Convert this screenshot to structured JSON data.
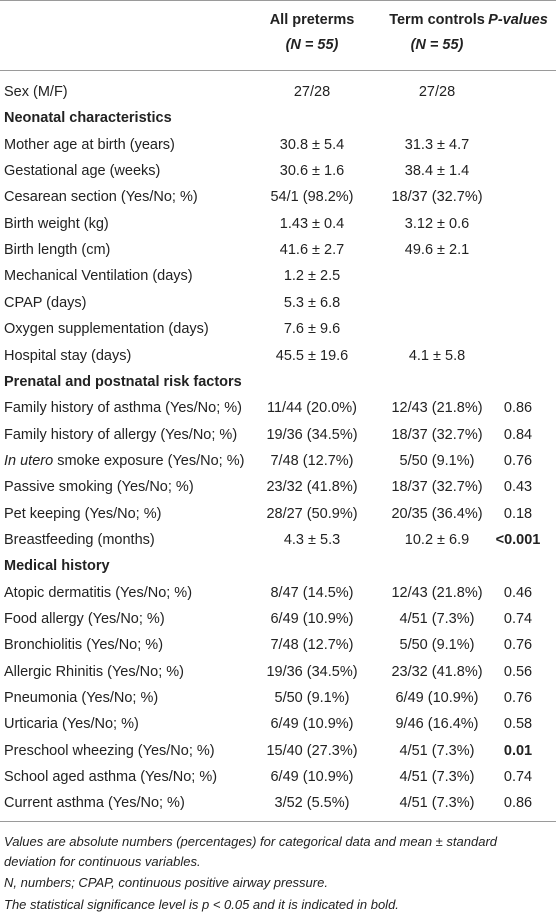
{
  "table": {
    "columns": [
      {
        "title": "All preterms",
        "subtitle": "(N = 55)"
      },
      {
        "title": "Term controls",
        "subtitle": "(N = 55)"
      },
      {
        "title": "P-values"
      }
    ],
    "rows": [
      {
        "label": "Sex (M/F)",
        "cells": [
          "27/28",
          "27/28",
          null
        ]
      },
      {
        "section": "Neonatal characteristics"
      },
      {
        "label": "Mother age at birth (years)",
        "cells": [
          "30.8 ± 5.4",
          "31.3 ± 4.7",
          null
        ]
      },
      {
        "label": "Gestational age (weeks)",
        "cells": [
          "30.6 ± 1.6",
          "38.4 ± 1.4",
          null
        ]
      },
      {
        "label": "Cesarean section (Yes/No; %)",
        "cells": [
          "54/1 (98.2%)",
          "18/37 (32.7%)",
          null
        ]
      },
      {
        "label": "Birth weight (kg)",
        "cells": [
          "1.43 ± 0.4",
          "3.12 ± 0.6",
          null
        ]
      },
      {
        "label": "Birth length (cm)",
        "cells": [
          "41.6 ± 2.7",
          "49.6 ± 2.1",
          null
        ]
      },
      {
        "label": "Mechanical Ventilation (days)",
        "cells": [
          "1.2 ± 2.5",
          null,
          null
        ]
      },
      {
        "label": "CPAP (days)",
        "cells": [
          "5.3 ± 6.8",
          null,
          null
        ]
      },
      {
        "label": "Oxygen supplementation (days)",
        "cells": [
          "7.6 ± 9.6",
          null,
          null
        ]
      },
      {
        "label": "Hospital stay (days)",
        "cells": [
          "45.5 ± 19.6",
          "4.1 ± 5.8",
          null
        ]
      },
      {
        "section": "Prenatal and postnatal risk factors"
      },
      {
        "label": "Family history of asthma (Yes/No; %)",
        "cells": [
          "11/44 (20.0%)",
          "12/43 (21.8%)",
          "0.86"
        ]
      },
      {
        "label": "Family history of allergy (Yes/No; %)",
        "cells": [
          "19/36 (34.5%)",
          "18/37 (32.7%)",
          "0.84"
        ]
      },
      {
        "label_italic": "In utero",
        "label": "smoke exposure (Yes/No; %)",
        "cells": [
          "7/48 (12.7%)",
          "5/50 (9.1%)",
          "0.76"
        ]
      },
      {
        "label": "Passive smoking (Yes/No; %)",
        "cells": [
          "23/32 (41.8%)",
          "18/37 (32.7%)",
          "0.43"
        ]
      },
      {
        "label": "Pet keeping (Yes/No; %)",
        "cells": [
          "28/27 (50.9%)",
          "20/35 (36.4%)",
          "0.18"
        ]
      },
      {
        "label": "Breastfeeding (months)",
        "cells": [
          "4.3 ± 5.3",
          "10.2 ± 6.9",
          "<0.001"
        ],
        "bold_p": true
      },
      {
        "section": "Medical history"
      },
      {
        "label": "Atopic dermatitis (Yes/No; %)",
        "cells": [
          "8/47 (14.5%)",
          "12/43 (21.8%)",
          "0.46"
        ]
      },
      {
        "label": "Food allergy (Yes/No; %)",
        "cells": [
          "6/49 (10.9%)",
          "4/51 (7.3%)",
          "0.74"
        ]
      },
      {
        "label": "Bronchiolitis (Yes/No; %)",
        "cells": [
          "7/48 (12.7%)",
          "5/50 (9.1%)",
          "0.76"
        ]
      },
      {
        "label": "Allergic Rhinitis (Yes/No; %)",
        "cells": [
          "19/36 (34.5%)",
          "23/32 (41.8%)",
          "0.56"
        ]
      },
      {
        "label": "Pneumonia (Yes/No; %)",
        "cells": [
          "5/50 (9.1%)",
          "6/49 (10.9%)",
          "0.76"
        ]
      },
      {
        "label": "Urticaria (Yes/No; %)",
        "cells": [
          "6/49 (10.9%)",
          "9/46 (16.4%)",
          "0.58"
        ]
      },
      {
        "label": "Preschool wheezing (Yes/No; %)",
        "cells": [
          "15/40 (27.3%)",
          "4/51 (7.3%)",
          "0.01"
        ],
        "bold_p": true
      },
      {
        "label": "School aged asthma (Yes/No; %)",
        "cells": [
          "6/49 (10.9%)",
          "4/51 (7.3%)",
          "0.74"
        ]
      },
      {
        "label": "Current asthma (Yes/No; %)",
        "cells": [
          "3/52 (5.5%)",
          "4/51 (7.3%)",
          "0.86"
        ]
      }
    ],
    "footnotes": [
      "Values are absolute numbers (percentages) for categorical data and mean ± standard deviation for continuous variables.",
      "N, numbers; CPAP, continuous positive airway pressure.",
      "The statistical significance level is p < 0.05 and it is indicated in bold."
    ]
  }
}
